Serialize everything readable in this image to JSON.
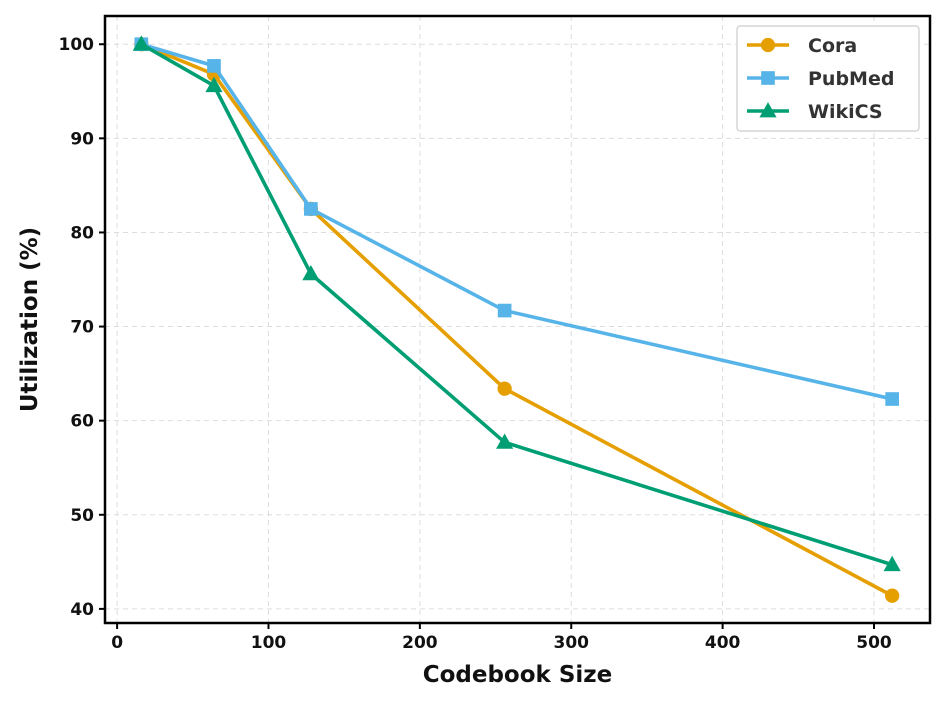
{
  "chart_data": {
    "type": "line",
    "title": "",
    "xlabel": "Codebook Size",
    "ylabel": "Utilization (%)",
    "xlim": [
      -8,
      537
    ],
    "ylim": [
      38.5,
      103
    ],
    "xticks": [
      0,
      100,
      200,
      300,
      400,
      500
    ],
    "yticks": [
      40,
      50,
      60,
      70,
      80,
      90,
      100
    ],
    "grid": true,
    "legend_position": "top-right",
    "x": [
      16,
      64,
      128,
      256,
      512
    ],
    "series": [
      {
        "name": "Cora",
        "marker": "circle",
        "color": "#E69F00",
        "values": [
          100,
          96.8,
          82.5,
          63.4,
          41.4
        ]
      },
      {
        "name": "PubMed",
        "marker": "square",
        "color": "#56B4E9",
        "values": [
          100,
          97.7,
          82.5,
          71.7,
          62.3
        ]
      },
      {
        "name": "WikiCS",
        "marker": "triangle",
        "color": "#009E73",
        "values": [
          100,
          95.6,
          75.6,
          57.7,
          44.7
        ]
      }
    ]
  }
}
